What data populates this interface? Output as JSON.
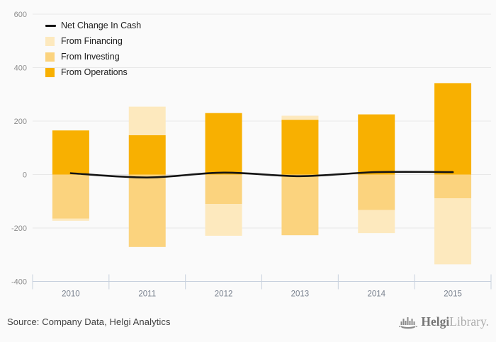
{
  "chart_data": {
    "type": "bar",
    "stacked": true,
    "title": "",
    "categories": [
      "2010",
      "2011",
      "2012",
      "2013",
      "2014",
      "2015"
    ],
    "series": [
      {
        "name": "Net Change In Cash",
        "type": "line",
        "color": "#141414",
        "values": [
          5,
          -11,
          7,
          -6,
          9,
          9
        ]
      },
      {
        "name": "From Financing",
        "type": "bar",
        "color": "#FDE9BE",
        "values": [
          -8,
          107,
          -119,
          15,
          -86,
          -247
        ]
      },
      {
        "name": "From Investing",
        "type": "bar",
        "color": "#FBD37E",
        "values": [
          -165,
          -271,
          -110,
          -227,
          -133,
          -89
        ]
      },
      {
        "name": "From Operations",
        "type": "bar",
        "color": "#F8B001",
        "values": [
          165,
          147,
          230,
          205,
          225,
          342
        ]
      }
    ],
    "stack_order": [
      "From Operations",
      "From Investing",
      "From Financing"
    ],
    "legend_order": [
      "Net Change In Cash",
      "From Financing",
      "From Investing",
      "From Operations"
    ],
    "legend_position": "top-left",
    "yticks": [
      600,
      400,
      200,
      0,
      -200,
      -400
    ],
    "ylim": [
      -400,
      600
    ],
    "grid": "horizontal",
    "colors": {
      "background": "#FAFAFA",
      "gridline": "#E8E8E8",
      "axis": "#C8D1DE",
      "y_tick_label": "#8D8D8D",
      "x_tick_label": "#7A828F"
    }
  },
  "footer": {
    "source": "Source: Company Data, Helgi Analytics",
    "logo": {
      "bold": "Helgi",
      "light": "Library."
    }
  }
}
